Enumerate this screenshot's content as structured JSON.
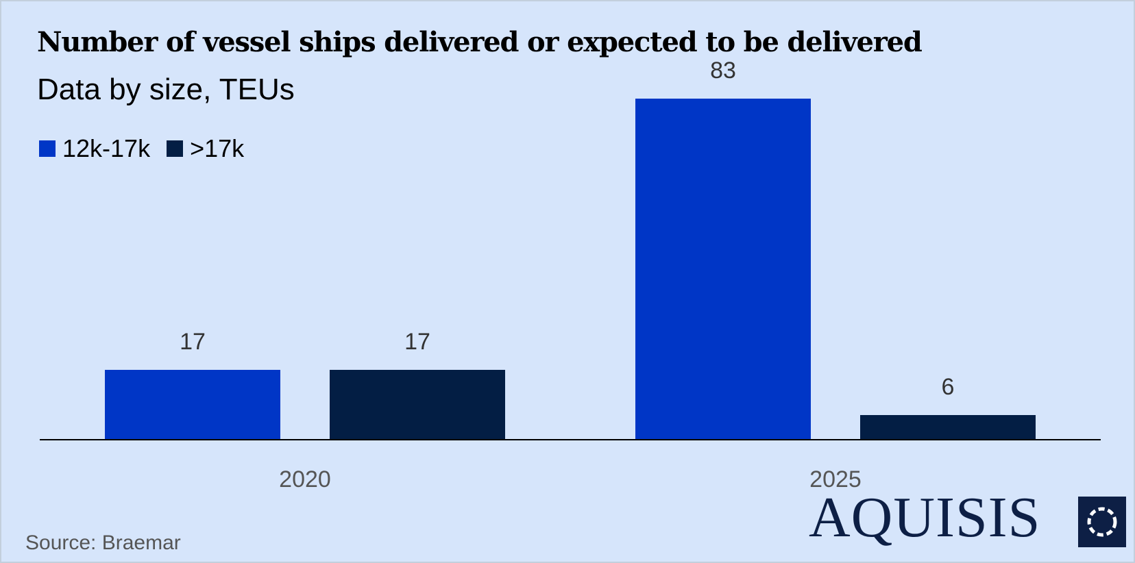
{
  "header": {
    "title": "Number of vessel ships delivered or expected to be delivered",
    "subtitle": "Data by size, TEUs"
  },
  "footer": {
    "source": "Source: Braemar",
    "brand": "AQUISIS"
  },
  "colors": {
    "background": "#d6e5fb",
    "series_12k_17k": "#0036c6",
    "series_over_17k": "#031e44",
    "axis": "#000000",
    "data_label": "#333333",
    "tick_label": "#555555"
  },
  "chart_data": {
    "type": "bar",
    "title": "Number of vessel ships delivered or expected to be delivered",
    "subtitle": "Data by size, TEUs",
    "categories": [
      "2020",
      "2025"
    ],
    "series": [
      {
        "name": "12k-17k",
        "values": [
          17,
          83
        ]
      },
      {
        "name": ">17k",
        "values": [
          17,
          6
        ]
      }
    ],
    "xlabel": "",
    "ylabel": "",
    "ylim": [
      0,
      100
    ],
    "grid": false,
    "legend": "top-left",
    "data_labels": true
  }
}
